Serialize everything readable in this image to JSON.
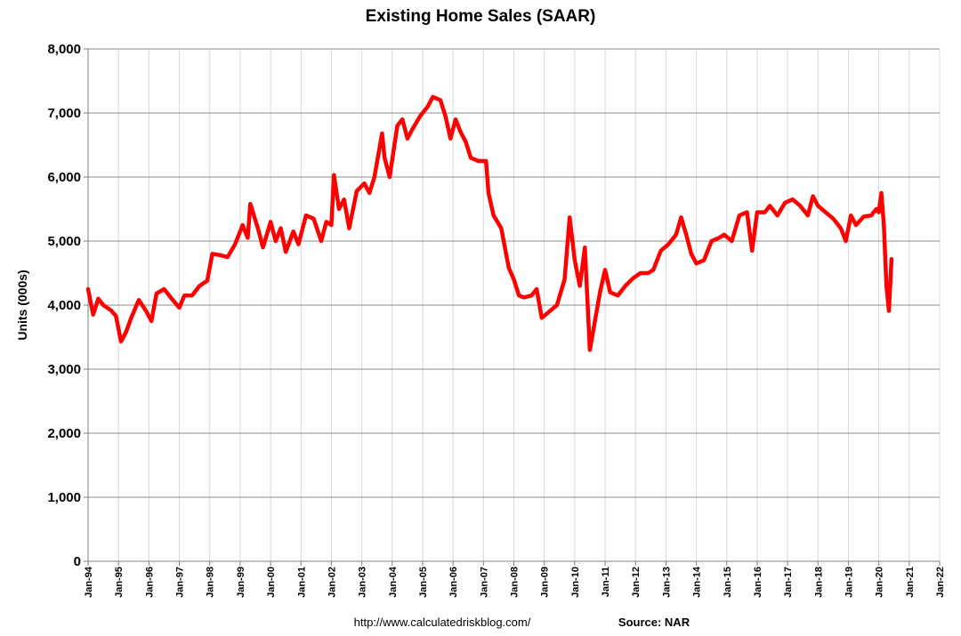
{
  "chart_data": {
    "type": "line",
    "title": "Existing Home Sales (SAAR)",
    "xlabel": "",
    "ylabel": "Units (000s)",
    "ylim": [
      0,
      8000
    ],
    "yticks": [
      0,
      1000,
      2000,
      3000,
      4000,
      5000,
      6000,
      7000,
      8000
    ],
    "ytick_labels": [
      "0",
      "1,000",
      "2,000",
      "3,000",
      "4,000",
      "5,000",
      "6,000",
      "7,000",
      "8,000"
    ],
    "xlim": [
      "1994-01",
      "2022-01"
    ],
    "xtick_labels": [
      "Jan-94",
      "Jan-95",
      "Jan-96",
      "Jan-97",
      "Jan-98",
      "Jan-99",
      "Jan-00",
      "Jan-01",
      "Jan-02",
      "Jan-03",
      "Jan-04",
      "Jan-05",
      "Jan-06",
      "Jan-07",
      "Jan-08",
      "Jan-09",
      "Jan-10",
      "Jan-11",
      "Jan-12",
      "Jan-13",
      "Jan-14",
      "Jan-15",
      "Jan-16",
      "Jan-17",
      "Jan-18",
      "Jan-19",
      "Jan-20",
      "Jan-21",
      "Jan-22"
    ],
    "grid": true,
    "legend": "none",
    "line_color": "#ff0000",
    "series": [
      {
        "points": [
          [
            "1994-01",
            4250
          ],
          [
            "1994-03",
            3850
          ],
          [
            "1994-05",
            4100
          ],
          [
            "1994-07",
            4000
          ],
          [
            "1994-10",
            3920
          ],
          [
            "1994-12",
            3830
          ],
          [
            "1995-02",
            3430
          ],
          [
            "1995-04",
            3580
          ],
          [
            "1995-06",
            3800
          ],
          [
            "1995-09",
            4080
          ],
          [
            "1995-12",
            3900
          ],
          [
            "1996-02",
            3750
          ],
          [
            "1996-04",
            4180
          ],
          [
            "1996-07",
            4250
          ],
          [
            "1996-10",
            4100
          ],
          [
            "1997-01",
            3960
          ],
          [
            "1997-03",
            4150
          ],
          [
            "1997-06",
            4150
          ],
          [
            "1997-09",
            4300
          ],
          [
            "1997-12",
            4380
          ],
          [
            "1998-02",
            4800
          ],
          [
            "1998-05",
            4780
          ],
          [
            "1998-08",
            4750
          ],
          [
            "1998-11",
            4950
          ],
          [
            "1999-02",
            5250
          ],
          [
            "1999-04",
            5050
          ],
          [
            "1999-05",
            5580
          ],
          [
            "1999-08",
            5200
          ],
          [
            "1999-10",
            4900
          ],
          [
            "2000-01",
            5300
          ],
          [
            "2000-03",
            5000
          ],
          [
            "2000-05",
            5200
          ],
          [
            "2000-07",
            4830
          ],
          [
            "2000-10",
            5150
          ],
          [
            "2000-12",
            4950
          ],
          [
            "2001-03",
            5400
          ],
          [
            "2001-06",
            5350
          ],
          [
            "2001-09",
            5000
          ],
          [
            "2001-11",
            5300
          ],
          [
            "2002-01",
            5250
          ],
          [
            "2002-02",
            6030
          ],
          [
            "2002-04",
            5500
          ],
          [
            "2002-06",
            5650
          ],
          [
            "2002-08",
            5200
          ],
          [
            "2002-11",
            5780
          ],
          [
            "2003-02",
            5900
          ],
          [
            "2003-04",
            5750
          ],
          [
            "2003-06",
            6000
          ],
          [
            "2003-09",
            6680
          ],
          [
            "2003-10",
            6300
          ],
          [
            "2003-12",
            6000
          ],
          [
            "2004-03",
            6800
          ],
          [
            "2004-05",
            6900
          ],
          [
            "2004-07",
            6600
          ],
          [
            "2004-09",
            6750
          ],
          [
            "2004-12",
            6950
          ],
          [
            "2005-03",
            7100
          ],
          [
            "2005-05",
            7250
          ],
          [
            "2005-08",
            7200
          ],
          [
            "2005-10",
            6950
          ],
          [
            "2005-12",
            6600
          ],
          [
            "2006-02",
            6900
          ],
          [
            "2006-04",
            6700
          ],
          [
            "2006-06",
            6550
          ],
          [
            "2006-08",
            6300
          ],
          [
            "2006-11",
            6250
          ],
          [
            "2007-02",
            6250
          ],
          [
            "2007-03",
            5750
          ],
          [
            "2007-05",
            5400
          ],
          [
            "2007-08",
            5200
          ],
          [
            "2007-11",
            4580
          ],
          [
            "2008-01",
            4400
          ],
          [
            "2008-03",
            4150
          ],
          [
            "2008-05",
            4120
          ],
          [
            "2008-08",
            4150
          ],
          [
            "2008-10",
            4250
          ],
          [
            "2008-12",
            3800
          ],
          [
            "2009-03",
            3900
          ],
          [
            "2009-06",
            4000
          ],
          [
            "2009-09",
            4400
          ],
          [
            "2009-11",
            5370
          ],
          [
            "2010-01",
            4700
          ],
          [
            "2010-03",
            4300
          ],
          [
            "2010-05",
            4900
          ],
          [
            "2010-07",
            3300
          ],
          [
            "2010-09",
            3750
          ],
          [
            "2010-11",
            4200
          ],
          [
            "2011-01",
            4550
          ],
          [
            "2011-03",
            4200
          ],
          [
            "2011-06",
            4150
          ],
          [
            "2011-09",
            4300
          ],
          [
            "2011-12",
            4420
          ],
          [
            "2012-03",
            4500
          ],
          [
            "2012-06",
            4500
          ],
          [
            "2012-08",
            4550
          ],
          [
            "2012-11",
            4850
          ],
          [
            "2013-02",
            4950
          ],
          [
            "2013-05",
            5100
          ],
          [
            "2013-07",
            5370
          ],
          [
            "2013-09",
            5100
          ],
          [
            "2013-11",
            4800
          ],
          [
            "2014-01",
            4650
          ],
          [
            "2014-04",
            4700
          ],
          [
            "2014-07",
            5000
          ],
          [
            "2014-10",
            5050
          ],
          [
            "2014-12",
            5100
          ],
          [
            "2015-03",
            5000
          ],
          [
            "2015-06",
            5400
          ],
          [
            "2015-09",
            5450
          ],
          [
            "2015-11",
            4850
          ],
          [
            "2016-01",
            5450
          ],
          [
            "2016-04",
            5450
          ],
          [
            "2016-06",
            5550
          ],
          [
            "2016-09",
            5400
          ],
          [
            "2016-12",
            5600
          ],
          [
            "2017-03",
            5650
          ],
          [
            "2017-06",
            5550
          ],
          [
            "2017-09",
            5400
          ],
          [
            "2017-11",
            5700
          ],
          [
            "2018-01",
            5550
          ],
          [
            "2018-04",
            5450
          ],
          [
            "2018-07",
            5350
          ],
          [
            "2018-10",
            5200
          ],
          [
            "2018-12",
            5000
          ],
          [
            "2019-02",
            5400
          ],
          [
            "2019-04",
            5250
          ],
          [
            "2019-07",
            5380
          ],
          [
            "2019-10",
            5400
          ],
          [
            "2019-12",
            5500
          ],
          [
            "2020-01",
            5450
          ],
          [
            "2020-02",
            5750
          ],
          [
            "2020-03",
            5250
          ],
          [
            "2020-04",
            4300
          ],
          [
            "2020-05",
            3910
          ],
          [
            "2020-06",
            4720
          ]
        ]
      }
    ]
  },
  "footer": {
    "url": "http://www.calculatedriskblog.com/",
    "source": "Source: NAR"
  }
}
